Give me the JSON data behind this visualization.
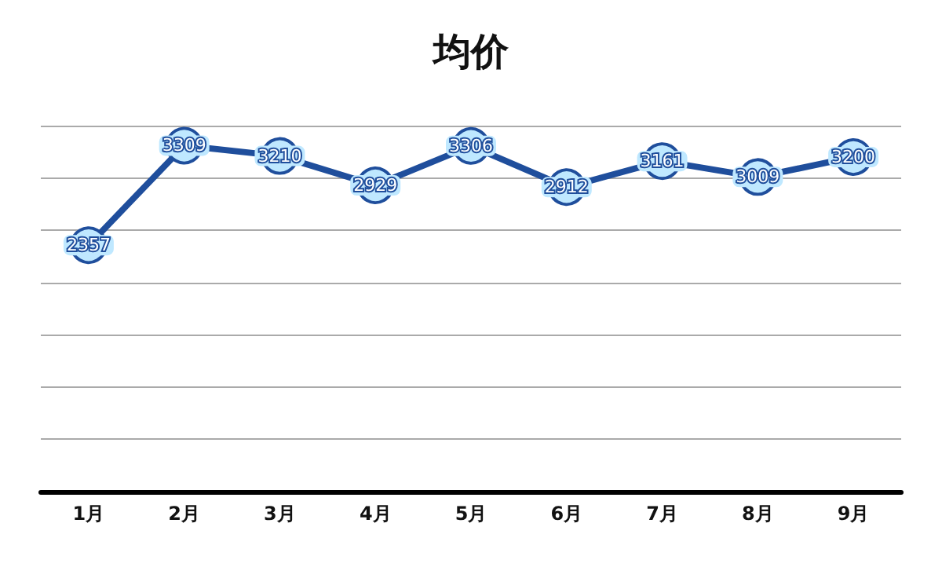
{
  "chart_data": {
    "type": "line",
    "title": "均价",
    "categories": [
      "1月",
      "2月",
      "3月",
      "4月",
      "5月",
      "6月",
      "7月",
      "8月",
      "9月"
    ],
    "series": [
      {
        "color": "#1f4e9c",
        "values": [
          2357,
          3309,
          3210,
          2929,
          3306,
          2912,
          3161,
          3009,
          3200
        ]
      }
    ],
    "ylim": [
      0,
      3500
    ],
    "yticks": [
      0,
      500,
      1000,
      1500,
      2000,
      2500,
      3000,
      3500
    ],
    "tick_labels": "x",
    "grid": "y",
    "marker": "circle",
    "data_labels": true
  }
}
